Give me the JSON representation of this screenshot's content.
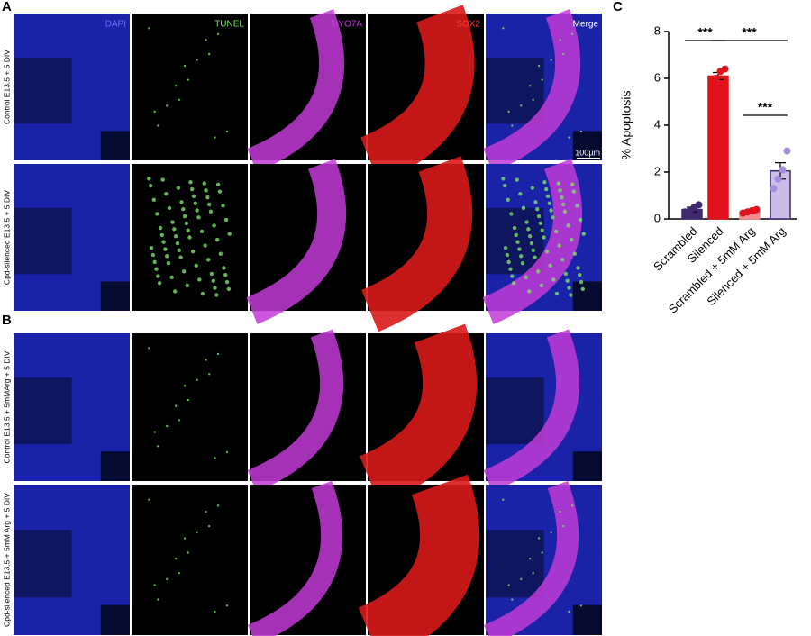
{
  "panel_labels": [
    "A",
    "B",
    "C"
  ],
  "channels": [
    "DAPI",
    "TUNEL",
    "MYO7A",
    "SOX2",
    "Merge"
  ],
  "row_labels": [
    "Control E13.5 + 5 DIV",
    "Cpd-silenced E13.5 + 5 DIV",
    "Control E13.5 + 5mMArg + 5 DIV",
    "Cpd-silenced E13.5 + 5mM Arg + 5 DIV"
  ],
  "scale_bar": "100µm",
  "chart_data": {
    "type": "bar",
    "categories": [
      "Scrambled",
      "Silenced",
      "Scrambled + 5mM Arg",
      "Silenced + 5mM Arg"
    ],
    "values": [
      0.4,
      6.1,
      0.3,
      2.05
    ],
    "errors": [
      0.1,
      0.15,
      0.05,
      0.35
    ],
    "points": [
      [
        0.3,
        0.35,
        0.5,
        0.6
      ],
      [
        5.9,
        6.0,
        6.3,
        6.4
      ],
      [
        0.25,
        0.3,
        0.35,
        0.4
      ],
      [
        1.3,
        1.7,
        2.1,
        2.9
      ]
    ],
    "colors": [
      "#3f2a6e",
      "#e0121b",
      "#f28c8c",
      "#cbbcea"
    ],
    "point_colors": [
      "#3f2a6e",
      "#e0121b",
      "#e0121b",
      "#a48fd8"
    ],
    "y_label": "% Apoptosis",
    "ylim": [
      0,
      8
    ],
    "yticks": [
      0,
      2,
      4,
      6,
      8
    ],
    "comparisons": [
      {
        "label": "***",
        "groups": [
          "Scrambled",
          "Silenced"
        ]
      },
      {
        "label": "***",
        "groups": [
          "Silenced",
          "Silenced + 5mM Arg"
        ]
      },
      {
        "label": "***",
        "groups": [
          "Scrambled + 5mM Arg",
          "Silenced + 5mM Arg"
        ]
      }
    ]
  }
}
